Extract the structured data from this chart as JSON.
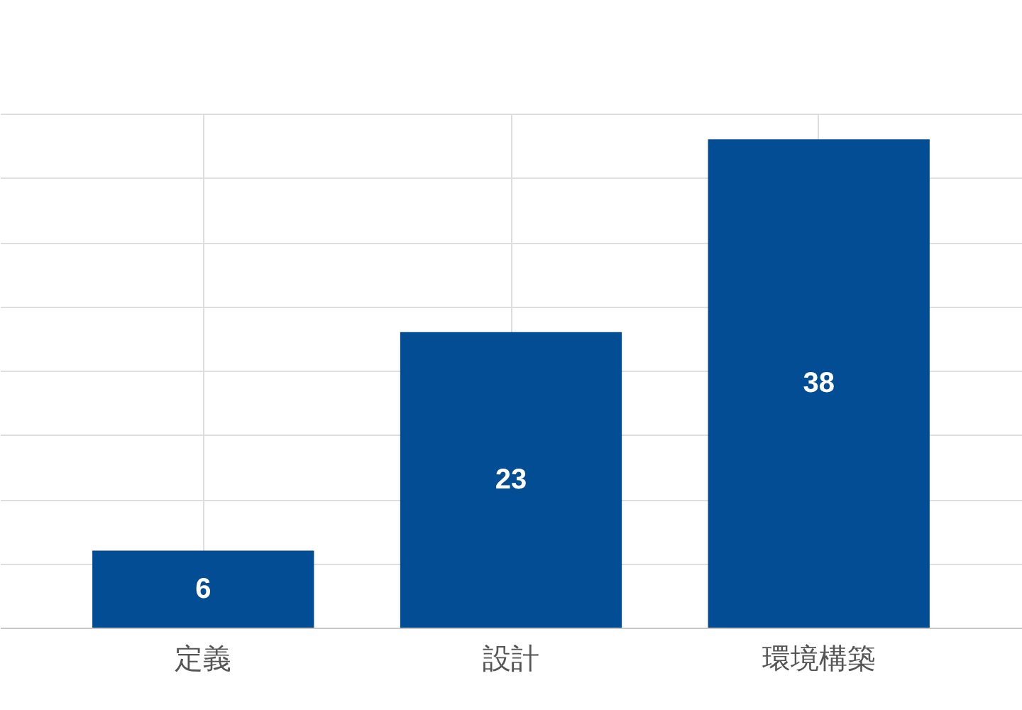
{
  "chart_data": {
    "type": "bar",
    "categories": [
      "定義",
      "設計",
      "環境構築"
    ],
    "values": [
      6,
      23,
      38
    ],
    "color": "#024d94",
    "ylim": [
      0,
      40
    ],
    "yticks": [
      0,
      5,
      10,
      15,
      20,
      25,
      30,
      35,
      40
    ],
    "grid": true,
    "tick_labels": "x",
    "data_labels": true
  }
}
